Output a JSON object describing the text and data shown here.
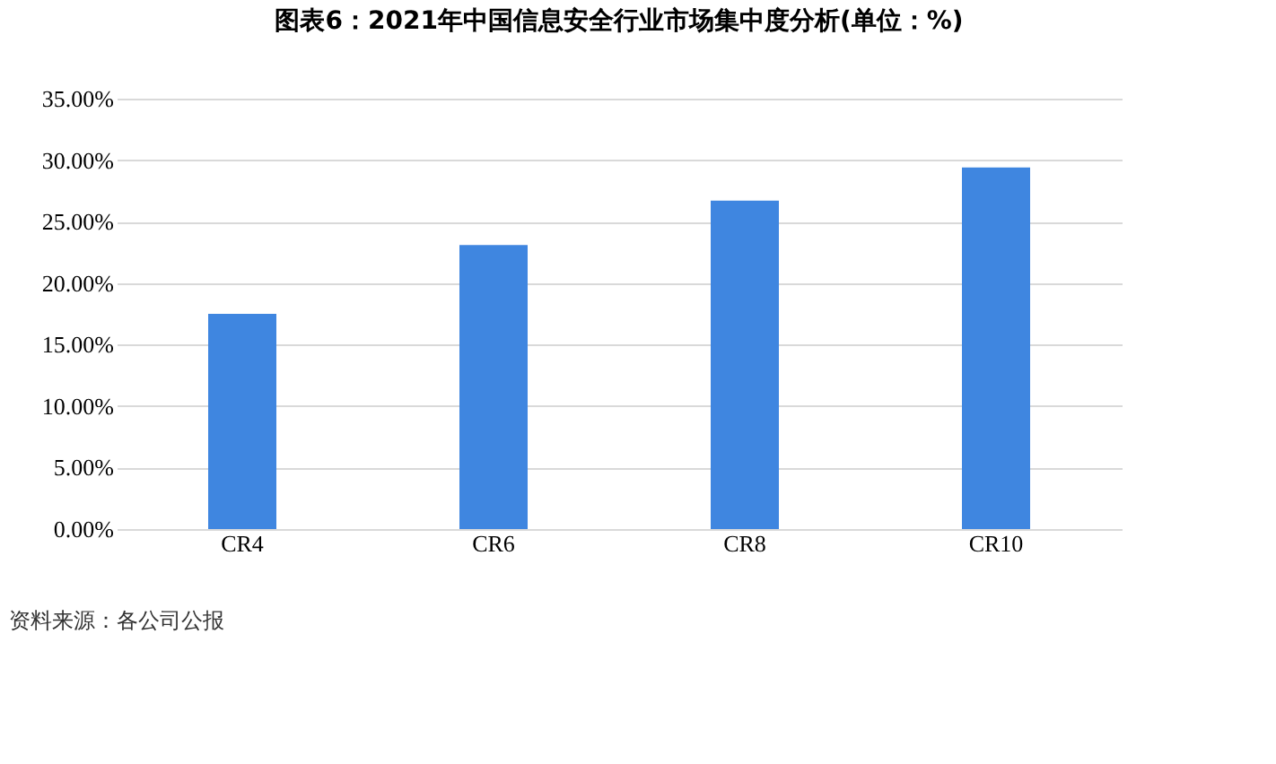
{
  "chart_data": {
    "type": "bar",
    "title": "图表6：2021年中国信息安全行业市场集中度分析(单位：%)",
    "categories": [
      "CR4",
      "CR6",
      "CR8",
      "CR10"
    ],
    "values": [
      17.5,
      23.1,
      26.7,
      29.4
    ],
    "color": "#3f86e0",
    "ylim": [
      0,
      35
    ],
    "yticks": [
      {
        "value": 0,
        "label": "0.00%"
      },
      {
        "value": 5,
        "label": "5.00%"
      },
      {
        "value": 10,
        "label": "10.00%"
      },
      {
        "value": 15,
        "label": "15.00%"
      },
      {
        "value": 20,
        "label": "20.00%"
      },
      {
        "value": 25,
        "label": "25.00%"
      },
      {
        "value": 30,
        "label": "30.00%"
      },
      {
        "value": 35,
        "label": "35.00%"
      }
    ],
    "grid": "y",
    "annotations": [
      "资料来源：各公司公报"
    ]
  }
}
